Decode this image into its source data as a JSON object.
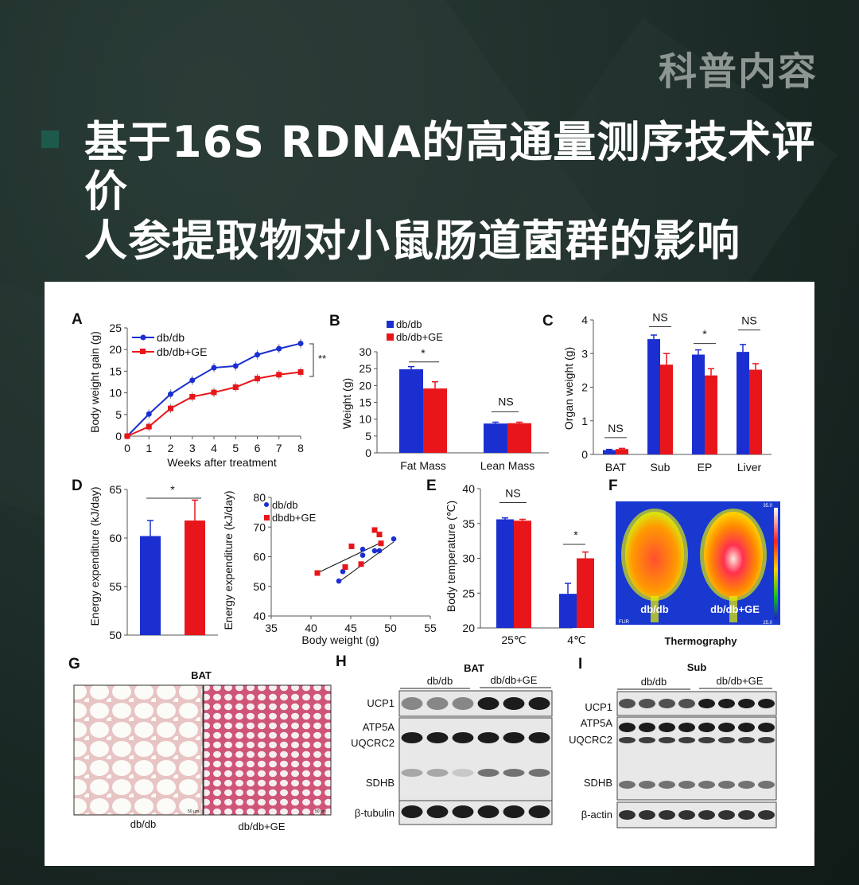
{
  "header": {
    "tag": "科普内容",
    "title_line1": "基于16S RDNA的高通量测序技术评价",
    "title_line2": "人参提取物对小鼠肠道菌群的影响"
  },
  "panels": {
    "A": {
      "label": "A",
      "ylabel": "Body weight gain (g)",
      "xlabel": "Weeks after treatment",
      "yticks": [
        "0",
        "5",
        "10",
        "15",
        "20",
        "25"
      ],
      "xticks": [
        "0",
        "1",
        "2",
        "3",
        "4",
        "5",
        "6",
        "7",
        "8"
      ],
      "legend": [
        "db/db",
        "db/db+GE"
      ],
      "sig": "**"
    },
    "B": {
      "label": "B",
      "ylabel": "Weight (g)",
      "yticks": [
        "0",
        "5",
        "10",
        "15",
        "20",
        "25",
        "30"
      ],
      "legend": [
        "db/db",
        "db/db+GE"
      ],
      "sig": [
        "*",
        "NS"
      ]
    },
    "C": {
      "label": "C",
      "ylabel": "Organ weight (g)",
      "yticks": [
        "0",
        "1",
        "2",
        "3",
        "4"
      ],
      "sig": [
        "NS",
        "NS",
        "*",
        "NS"
      ]
    },
    "D": {
      "label": "D",
      "ylabel": "Energy expenditure (kJ/day)",
      "yticks": [
        "50",
        "55",
        "60",
        "65"
      ],
      "sig": "*",
      "scatter_ylabel": "Energy expenditure (kJ/day)",
      "scatter_xlabel": "Body weight (g)",
      "scatter_xticks": [
        "35",
        "40",
        "45",
        "50",
        "55"
      ],
      "scatter_yticks": [
        "40",
        "50",
        "60",
        "70",
        "80"
      ],
      "legend": [
        "db/db",
        "dbdb+GE"
      ]
    },
    "E": {
      "label": "E",
      "ylabel": "Body temperature (℃)",
      "yticks": [
        "20",
        "25",
        "30",
        "35",
        "40"
      ],
      "sig": [
        "NS",
        "*"
      ]
    },
    "F": {
      "label": "F",
      "left": "db/db",
      "right": "db/db+GE",
      "caption": "Thermography",
      "flir": "FLIR",
      "scale_top": "35.0",
      "scale_bot": "25.0"
    },
    "G": {
      "label": "G",
      "title": "BAT",
      "left": "db/db",
      "right": "db/db+GE",
      "scalebar": "50 μm"
    },
    "H": {
      "label": "H",
      "title": "BAT",
      "groups": [
        "db/db",
        "db/db+GE"
      ],
      "bands": [
        "UCP1",
        "ATP5A",
        "UQCRC2",
        "SDHB",
        "β-tubulin"
      ]
    },
    "I": {
      "label": "I",
      "title": "Sub",
      "groups": [
        "db/db",
        "db/db+GE"
      ],
      "bands": [
        "UCP1",
        "ATP5A",
        "UQCRC2",
        "SDHB",
        "β-actin"
      ]
    }
  },
  "chart_data": [
    {
      "type": "line",
      "panel": "A",
      "x": [
        0,
        1,
        2,
        3,
        4,
        5,
        6,
        7,
        8
      ],
      "series": [
        {
          "name": "db/db",
          "color": "#1b2fd1",
          "values": [
            0,
            5.1,
            9.7,
            12.9,
            15.8,
            16.2,
            18.8,
            20.2,
            21.4
          ]
        },
        {
          "name": "db/db+GE",
          "color": "#e8161b",
          "values": [
            0,
            2.2,
            6.4,
            9.1,
            10.1,
            11.3,
            13.3,
            14.2,
            14.8
          ]
        }
      ],
      "ylim": [
        0,
        25
      ]
    },
    {
      "type": "bar",
      "panel": "B",
      "categories": [
        "Fat Mass",
        "Lean  Mass"
      ],
      "series": [
        {
          "name": "db/db",
          "color": "#1b2fd1",
          "values": [
            24.8,
            8.7
          ]
        },
        {
          "name": "db/db+GE",
          "color": "#e8161b",
          "values": [
            19.1,
            8.8
          ]
        }
      ],
      "ylim": [
        0,
        30
      ]
    },
    {
      "type": "bar",
      "panel": "C",
      "categories": [
        "BAT",
        "Sub",
        "EP",
        "Liver"
      ],
      "series": [
        {
          "values": [
            0.13,
            3.43,
            2.97,
            3.05
          ]
        },
        {
          "values": [
            0.16,
            2.67,
            2.35,
            2.52
          ]
        }
      ],
      "ylim": [
        0,
        4
      ]
    },
    {
      "type": "bar",
      "panel": "D",
      "series": [
        {
          "values": [
            60.2
          ]
        },
        {
          "values": [
            61.8
          ]
        }
      ],
      "ylim": [
        50,
        65
      ]
    },
    {
      "type": "scatter",
      "panel": "D2",
      "series": [
        {
          "name": "db/db",
          "points": [
            [
              43.5,
              51.8
            ],
            [
              44,
              55
            ],
            [
              46.5,
              60.5
            ],
            [
              46.5,
              62.5
            ],
            [
              48,
              62
            ],
            [
              48.6,
              62
            ],
            [
              50.4,
              66
            ]
          ]
        },
        {
          "name": "dbdb+GE",
          "points": [
            [
              40.8,
              54.5
            ],
            [
              44.3,
              56.5
            ],
            [
              45.1,
              63.5
            ],
            [
              46.3,
              57.5
            ],
            [
              48,
              69
            ],
            [
              48.6,
              67.5
            ],
            [
              48.8,
              64.5
            ]
          ]
        }
      ],
      "xlim": [
        35,
        55
      ],
      "ylim": [
        40,
        80
      ]
    },
    {
      "type": "bar",
      "panel": "E",
      "categories": [
        "25℃",
        "4℃"
      ],
      "series": [
        {
          "values": [
            35.6,
            24.9
          ]
        },
        {
          "values": [
            35.4,
            30.0
          ]
        }
      ],
      "ylim": [
        20,
        40
      ]
    }
  ]
}
